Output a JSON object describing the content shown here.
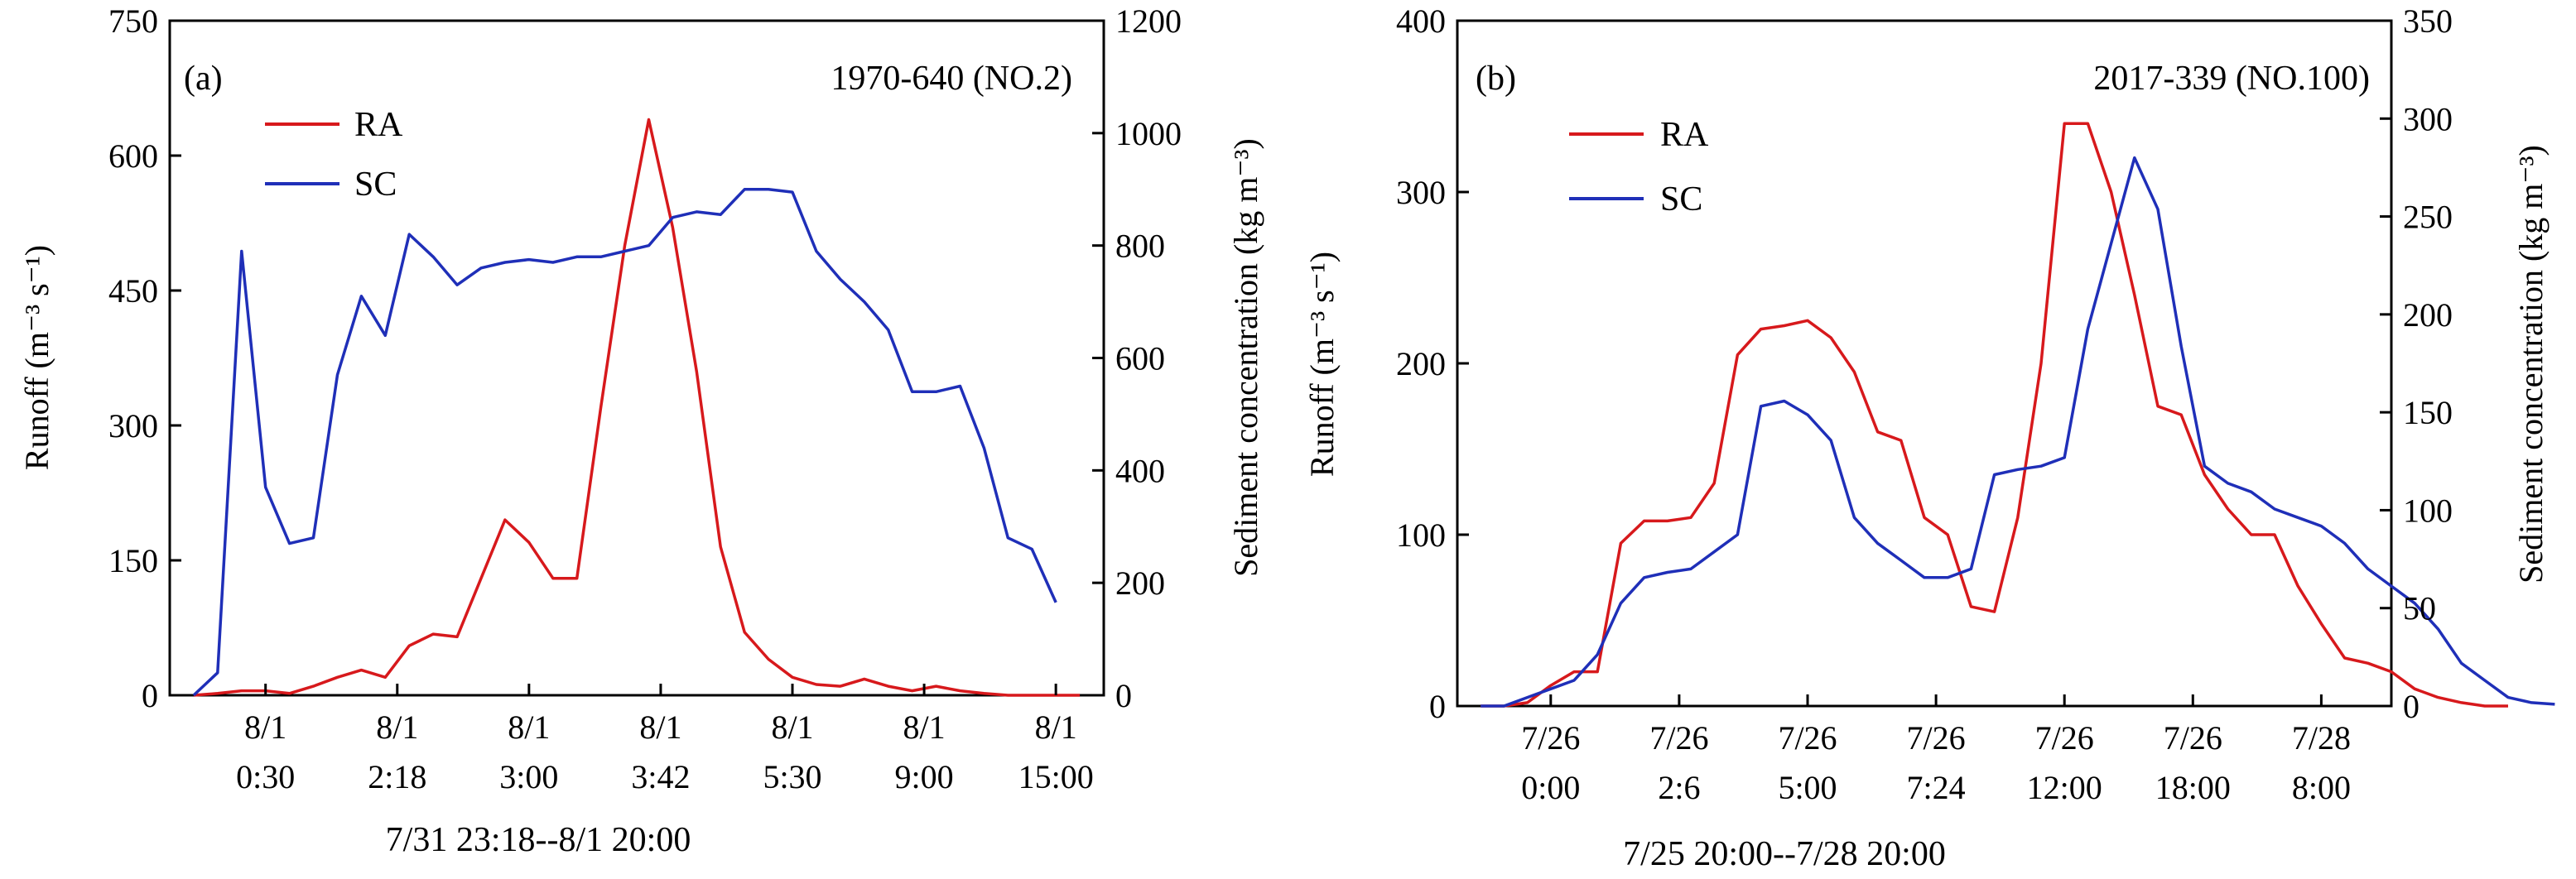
{
  "colors": {
    "ra": "#d7191c",
    "sc": "#1f2fb8",
    "axis": "#000000"
  },
  "chart_data": [
    {
      "type": "line",
      "panel_label": "(a)",
      "event_label": "1970-640 (NO.2)",
      "xlabel": "7/31 23:18--8/1 20:00",
      "ylabel_left": "Runoff (m⁻³ s⁻¹)",
      "ylabel_right": "Sediment concentration (kg m⁻³)",
      "legend": [
        "RA",
        "SC"
      ],
      "legend_position": "top-left",
      "grid": false,
      "x_range": [
        0,
        39
      ],
      "ylim_left": [
        0,
        750
      ],
      "ylim_right": [
        0,
        1200
      ],
      "yticks_left": [
        "0",
        "150",
        "300",
        "450",
        "600",
        "750"
      ],
      "yticks_right": [
        "0",
        "200",
        "400",
        "600",
        "800",
        "1000",
        "1200"
      ],
      "xtick_index": [
        4,
        9.5,
        15,
        20.5,
        26,
        31.5,
        37
      ],
      "xtick_top": [
        "8/1",
        "8/1",
        "8/1",
        "8/1",
        "8/1",
        "8/1",
        "8/1"
      ],
      "xtick_bottom": [
        "0:30",
        "2:18",
        "3:00",
        "3:42",
        "5:30",
        "9:00",
        "15:00"
      ],
      "series": [
        {
          "name": "RA",
          "axis": "left",
          "values": [
            0,
            2,
            5,
            5,
            2,
            10,
            20,
            28,
            20,
            55,
            68,
            65,
            130,
            195,
            170,
            130,
            130,
            320,
            500,
            640,
            520,
            360,
            165,
            70,
            40,
            20,
            12,
            10,
            18,
            10,
            5,
            10,
            5,
            2,
            0,
            0,
            0,
            0
          ]
        },
        {
          "name": "SC",
          "axis": "right",
          "values": [
            0,
            40,
            790,
            370,
            270,
            280,
            570,
            710,
            640,
            820,
            780,
            730,
            760,
            770,
            775,
            770,
            780,
            780,
            790,
            800,
            850,
            860,
            855,
            900,
            900,
            895,
            790,
            740,
            700,
            650,
            540,
            540,
            550,
            440,
            280,
            260,
            165
          ]
        }
      ]
    },
    {
      "type": "line",
      "panel_label": "(b)",
      "event_label": "2017-339 (NO.100)",
      "xlabel": "7/25 20:00--7/28 20:00",
      "ylabel_left": "Runoff (m⁻³ s⁻¹)",
      "ylabel_right": "Sediment concentration (kg m⁻³)",
      "legend": [
        "RA",
        "SC"
      ],
      "legend_position": "top-left",
      "grid": false,
      "x_range": [
        0,
        40
      ],
      "ylim_left": [
        0,
        400
      ],
      "ylim_right": [
        0,
        350
      ],
      "yticks_left": [
        "0",
        "100",
        "200",
        "300",
        "400"
      ],
      "yticks_right": [
        "0",
        "50",
        "100",
        "150",
        "200",
        "250",
        "300",
        "350"
      ],
      "xtick_index": [
        4,
        9.5,
        15,
        20.5,
        26,
        31.5,
        37
      ],
      "xtick_top": [
        "7/26",
        "7/26",
        "7/26",
        "7/26",
        "7/26",
        "7/26",
        "7/28"
      ],
      "xtick_bottom": [
        "0:00",
        "2:6",
        "5:00",
        "7:24",
        "12:00",
        "18:00",
        "8:00"
      ],
      "series": [
        {
          "name": "RA",
          "axis": "left",
          "values": [
            0,
            0,
            2,
            12,
            20,
            20,
            95,
            108,
            108,
            110,
            130,
            205,
            220,
            222,
            225,
            215,
            195,
            160,
            155,
            110,
            100,
            58,
            55,
            110,
            200,
            340,
            340,
            300,
            240,
            175,
            170,
            135,
            115,
            100,
            100,
            70,
            48,
            28,
            25,
            20,
            10,
            5,
            2,
            0,
            0
          ]
        },
        {
          "name": "SC",
          "axis": "left",
          "values": [
            0,
            0,
            5,
            10,
            15,
            30,
            60,
            75,
            78,
            80,
            90,
            100,
            175,
            178,
            170,
            155,
            110,
            95,
            85,
            75,
            75,
            80,
            135,
            138,
            140,
            145,
            220,
            270,
            320,
            290,
            210,
            140,
            130,
            125,
            115,
            110,
            105,
            95,
            80,
            70,
            60,
            45,
            25,
            15,
            5,
            2,
            1
          ]
        }
      ]
    }
  ]
}
